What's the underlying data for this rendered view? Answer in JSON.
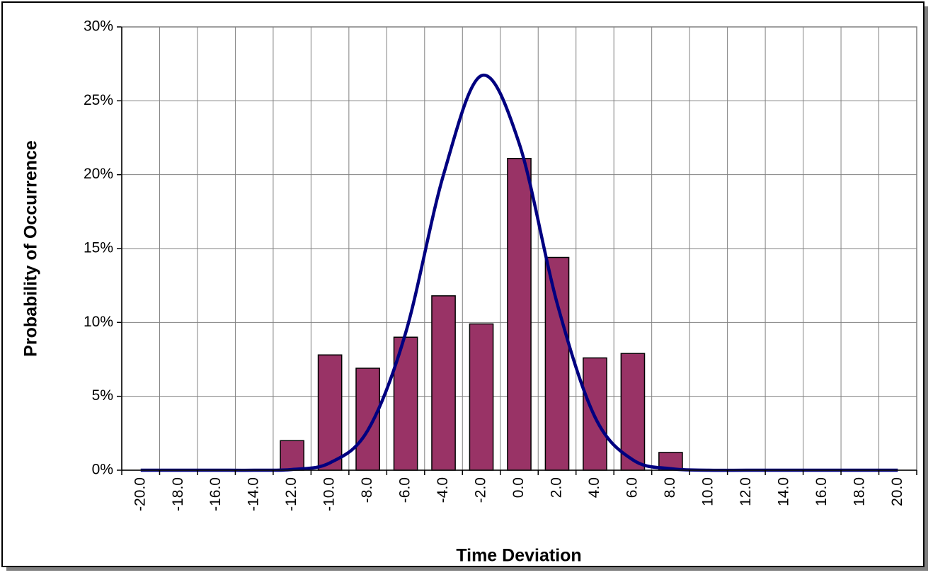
{
  "chart_data": {
    "type": "bar",
    "x_label": "Time Deviation",
    "y_label": "Probability of Occurrence",
    "categories": [
      "-20.0",
      "-18.0",
      "-16.0",
      "-14.0",
      "-12.0",
      "-10.0",
      "-8.0",
      "-6.0",
      "-4.0",
      "-2.0",
      "0.0",
      "2.0",
      "4.0",
      "6.0",
      "8.0",
      "10.0",
      "12.0",
      "14.0",
      "16.0",
      "18.0",
      "20.0"
    ],
    "series": [
      {
        "type": "bar",
        "color": "#993366",
        "values": [
          0,
          0,
          0,
          0,
          2.0,
          7.8,
          6.9,
          9.0,
          11.8,
          9.9,
          21.1,
          14.4,
          7.6,
          7.9,
          1.2,
          0,
          0,
          0,
          0,
          0,
          0
        ]
      },
      {
        "type": "line",
        "color": "#000080",
        "values": [
          0,
          0,
          0,
          0,
          0.05,
          0.5,
          2.7,
          9.3,
          20.0,
          26.7,
          22.1,
          11.3,
          3.6,
          0.7,
          0.1,
          0,
          0,
          0,
          0,
          0,
          0
        ]
      }
    ],
    "ylim": [
      0,
      30
    ],
    "yticks": [
      {
        "value": 0,
        "label": "0%"
      },
      {
        "value": 5,
        "label": "5%"
      },
      {
        "value": 10,
        "label": "10%"
      },
      {
        "value": 15,
        "label": "15%"
      },
      {
        "value": 20,
        "label": "20%"
      },
      {
        "value": 25,
        "label": "25%"
      },
      {
        "value": 30,
        "label": "30%"
      }
    ],
    "grid": true
  }
}
